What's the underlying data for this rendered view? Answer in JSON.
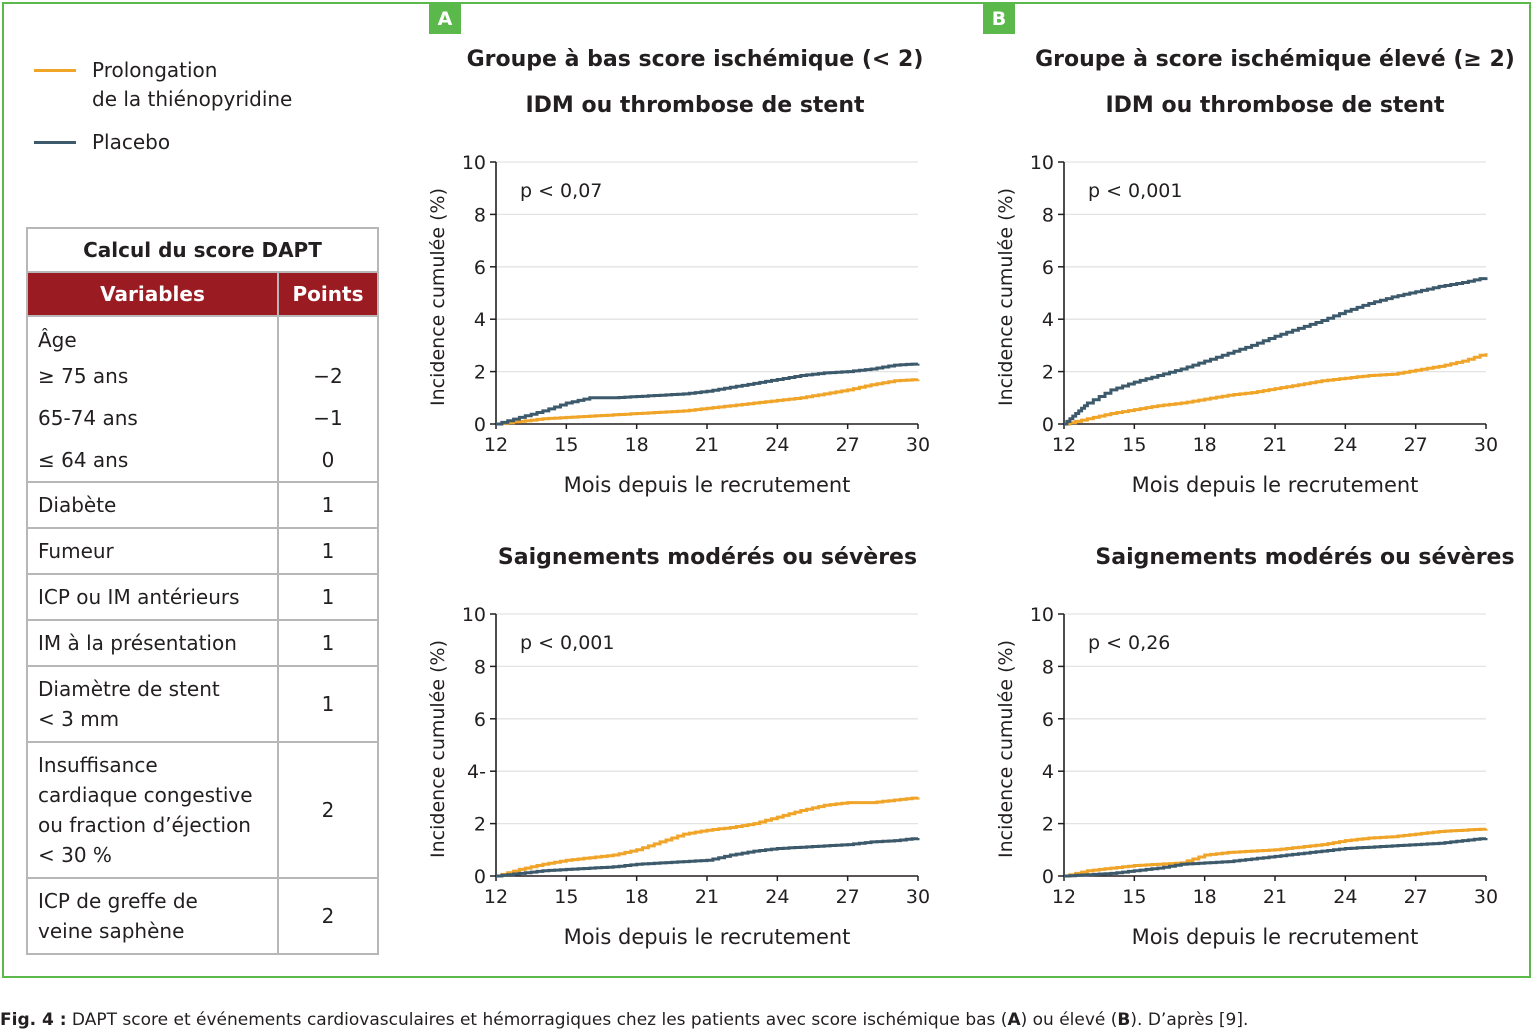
{
  "panels": [
    {
      "tag": "A"
    },
    {
      "tag": "B"
    }
  ],
  "legend": [
    {
      "label1": "Prolongation",
      "label2": "de la thiénopyridine",
      "color": "#f0a428"
    },
    {
      "label1": "Placebo",
      "label2": "",
      "color": "#3c5a6b"
    }
  ],
  "titles": {
    "a_group": "Groupe à bas score ischémique (< 2)",
    "a_top": "IDM ou thrombose de stent",
    "b_group": "Groupe à score ischémique élevé (≥ 2)",
    "b_top": "IDM ou thrombose de stent",
    "a_bottom": "Saignements modérés ou sévères",
    "b_bottom": "Saignements modérés ou sévères"
  },
  "table": {
    "caption": "Calcul du score DAPT",
    "headers": [
      "Variables",
      "Points"
    ],
    "age": "Âge",
    "rows": [
      {
        "v": "≥ 75 ans",
        "p": "−2"
      },
      {
        "v": "65-74 ans",
        "p": "−1"
      },
      {
        "v": "≤ 64 ans",
        "p": "0"
      },
      {
        "v": "Diabète",
        "p": "1"
      },
      {
        "v": "Fumeur",
        "p": "1"
      },
      {
        "v": "ICP ou IM antérieurs",
        "p": "1"
      },
      {
        "v": "IM à la présentation",
        "p": "1"
      },
      {
        "v": "Diamètre de stent\n< 3 mm",
        "p": "1"
      },
      {
        "v": "Insuffisance\ncardiaque congestive\nou fraction d’éjection\n< 30 %",
        "p": "2"
      },
      {
        "v": "ICP de greffe de\nveine saphène",
        "p": "2"
      }
    ]
  },
  "caption": {
    "lead": "Fig. 4 :",
    "text": " DAPT score et événements cardiovasculaires et hémorragiques chez les patients avec score ischémique bas (",
    "a": "A",
    "mid": ") ou élevé (",
    "b": "B",
    "end": "). D’après [9]."
  },
  "chart_data": [
    {
      "type": "line",
      "panel": "A",
      "title": "IDM ou thrombose de stent",
      "pvalue": "p < 0,07",
      "xlabel": "Mois depuis le recrutement",
      "ylabel": "Incidence cumulée (%)",
      "xlim": [
        12,
        30
      ],
      "ylim": [
        0,
        10
      ],
      "xticks": [
        12,
        15,
        18,
        21,
        24,
        27,
        30
      ],
      "yticks": [
        "0",
        "2",
        "4",
        "6",
        "8",
        "10"
      ],
      "grid": true,
      "series": [
        {
          "name": "Prolongation de la thiénopyridine",
          "color": "#f0a428",
          "x": [
            12,
            13,
            14,
            15,
            16,
            17,
            18,
            19,
            20,
            21,
            22,
            23,
            24,
            25,
            26,
            27,
            28,
            29,
            30
          ],
          "y": [
            0,
            0.1,
            0.2,
            0.25,
            0.3,
            0.35,
            0.4,
            0.45,
            0.5,
            0.6,
            0.7,
            0.8,
            0.9,
            1.0,
            1.15,
            1.3,
            1.5,
            1.65,
            1.7
          ]
        },
        {
          "name": "Placebo",
          "color": "#3c5a6b",
          "x": [
            12,
            13,
            14,
            15,
            16,
            17,
            18,
            19,
            20,
            21,
            22,
            23,
            24,
            25,
            26,
            27,
            28,
            29,
            30
          ],
          "y": [
            0,
            0.25,
            0.5,
            0.8,
            1.0,
            1.0,
            1.05,
            1.1,
            1.15,
            1.25,
            1.4,
            1.55,
            1.7,
            1.85,
            1.95,
            2.0,
            2.1,
            2.25,
            2.3
          ]
        }
      ]
    },
    {
      "type": "line",
      "panel": "B",
      "title": "IDM ou thrombose de stent",
      "pvalue": "p < 0,001",
      "xlabel": "Mois depuis le recrutement",
      "ylabel": "Incidence cumulée (%)",
      "xlim": [
        12,
        30
      ],
      "ylim": [
        0,
        10
      ],
      "xticks": [
        12,
        15,
        18,
        21,
        24,
        27,
        30
      ],
      "yticks": [
        "0",
        "2",
        "4",
        "6",
        "8",
        "10"
      ],
      "grid": true,
      "series": [
        {
          "name": "Prolongation de la thiénopyridine",
          "color": "#f0a428",
          "x": [
            12,
            13,
            14,
            15,
            16,
            17,
            18,
            19,
            20,
            21,
            22,
            23,
            24,
            25,
            26,
            27,
            28,
            29,
            30
          ],
          "y": [
            0,
            0.2,
            0.4,
            0.55,
            0.7,
            0.8,
            0.95,
            1.1,
            1.2,
            1.35,
            1.5,
            1.65,
            1.75,
            1.85,
            1.9,
            2.05,
            2.2,
            2.4,
            2.7
          ]
        },
        {
          "name": "Placebo",
          "color": "#3c5a6b",
          "x": [
            12,
            12.5,
            13,
            14,
            15,
            16,
            17,
            18,
            19,
            20,
            21,
            22,
            23,
            24,
            25,
            26,
            27,
            28,
            29,
            30
          ],
          "y": [
            0,
            0.4,
            0.8,
            1.3,
            1.6,
            1.85,
            2.1,
            2.4,
            2.7,
            3.0,
            3.35,
            3.65,
            3.95,
            4.3,
            4.6,
            4.85,
            5.05,
            5.25,
            5.4,
            5.6
          ]
        }
      ]
    },
    {
      "type": "line",
      "panel": "A",
      "title": "Saignements modérés ou sévères",
      "pvalue": "p < 0,001",
      "xlabel": "Mois depuis le recrutement",
      "ylabel": "Incidence cumulée (%)",
      "xlim": [
        12,
        30
      ],
      "ylim": [
        0,
        10
      ],
      "xticks": [
        12,
        15,
        18,
        21,
        24,
        27,
        30
      ],
      "yticks": [
        "0",
        "2",
        "4-",
        "6",
        "8",
        "10"
      ],
      "grid": true,
      "series": [
        {
          "name": "Prolongation de la thiénopyridine",
          "color": "#f0a428",
          "x": [
            12,
            13,
            14,
            15,
            16,
            17,
            18,
            19,
            20,
            21,
            22,
            23,
            24,
            25,
            26,
            27,
            28,
            29,
            30
          ],
          "y": [
            0,
            0.25,
            0.45,
            0.6,
            0.7,
            0.8,
            1.0,
            1.3,
            1.6,
            1.75,
            1.85,
            2.0,
            2.25,
            2.5,
            2.7,
            2.8,
            2.8,
            2.9,
            3.0
          ]
        },
        {
          "name": "Placebo",
          "color": "#3c5a6b",
          "x": [
            12,
            13,
            14,
            15,
            16,
            17,
            18,
            19,
            20,
            21,
            22,
            23,
            24,
            25,
            26,
            27,
            28,
            29,
            30
          ],
          "y": [
            0,
            0.1,
            0.2,
            0.25,
            0.3,
            0.35,
            0.45,
            0.5,
            0.55,
            0.6,
            0.8,
            0.95,
            1.05,
            1.1,
            1.15,
            1.2,
            1.3,
            1.35,
            1.45
          ]
        }
      ]
    },
    {
      "type": "line",
      "panel": "B",
      "title": "Saignements modérés ou sévères",
      "pvalue": "p < 0,26",
      "xlabel": "Mois depuis le recrutement",
      "ylabel": "Incidence cumulée (%)",
      "xlim": [
        12,
        30
      ],
      "ylim": [
        0,
        10
      ],
      "xticks": [
        12,
        15,
        18,
        21,
        24,
        27,
        30
      ],
      "yticks": [
        "0",
        "2",
        "4",
        "6",
        "8",
        "10"
      ],
      "grid": true,
      "series": [
        {
          "name": "Prolongation de la thiénopyridine",
          "color": "#f0a428",
          "x": [
            12,
            13,
            14,
            15,
            16,
            17,
            18,
            19,
            20,
            21,
            22,
            23,
            24,
            25,
            26,
            27,
            28,
            29,
            30
          ],
          "y": [
            0,
            0.2,
            0.3,
            0.4,
            0.45,
            0.5,
            0.8,
            0.9,
            0.95,
            1.0,
            1.1,
            1.2,
            1.35,
            1.45,
            1.5,
            1.6,
            1.7,
            1.75,
            1.8
          ]
        },
        {
          "name": "Placebo",
          "color": "#3c5a6b",
          "x": [
            12,
            13,
            14,
            15,
            16,
            17,
            18,
            19,
            20,
            21,
            22,
            23,
            24,
            25,
            26,
            27,
            28,
            29,
            30
          ],
          "y": [
            0,
            0.05,
            0.1,
            0.2,
            0.3,
            0.45,
            0.5,
            0.55,
            0.65,
            0.75,
            0.85,
            0.95,
            1.05,
            1.1,
            1.15,
            1.2,
            1.25,
            1.35,
            1.45
          ]
        }
      ]
    }
  ]
}
